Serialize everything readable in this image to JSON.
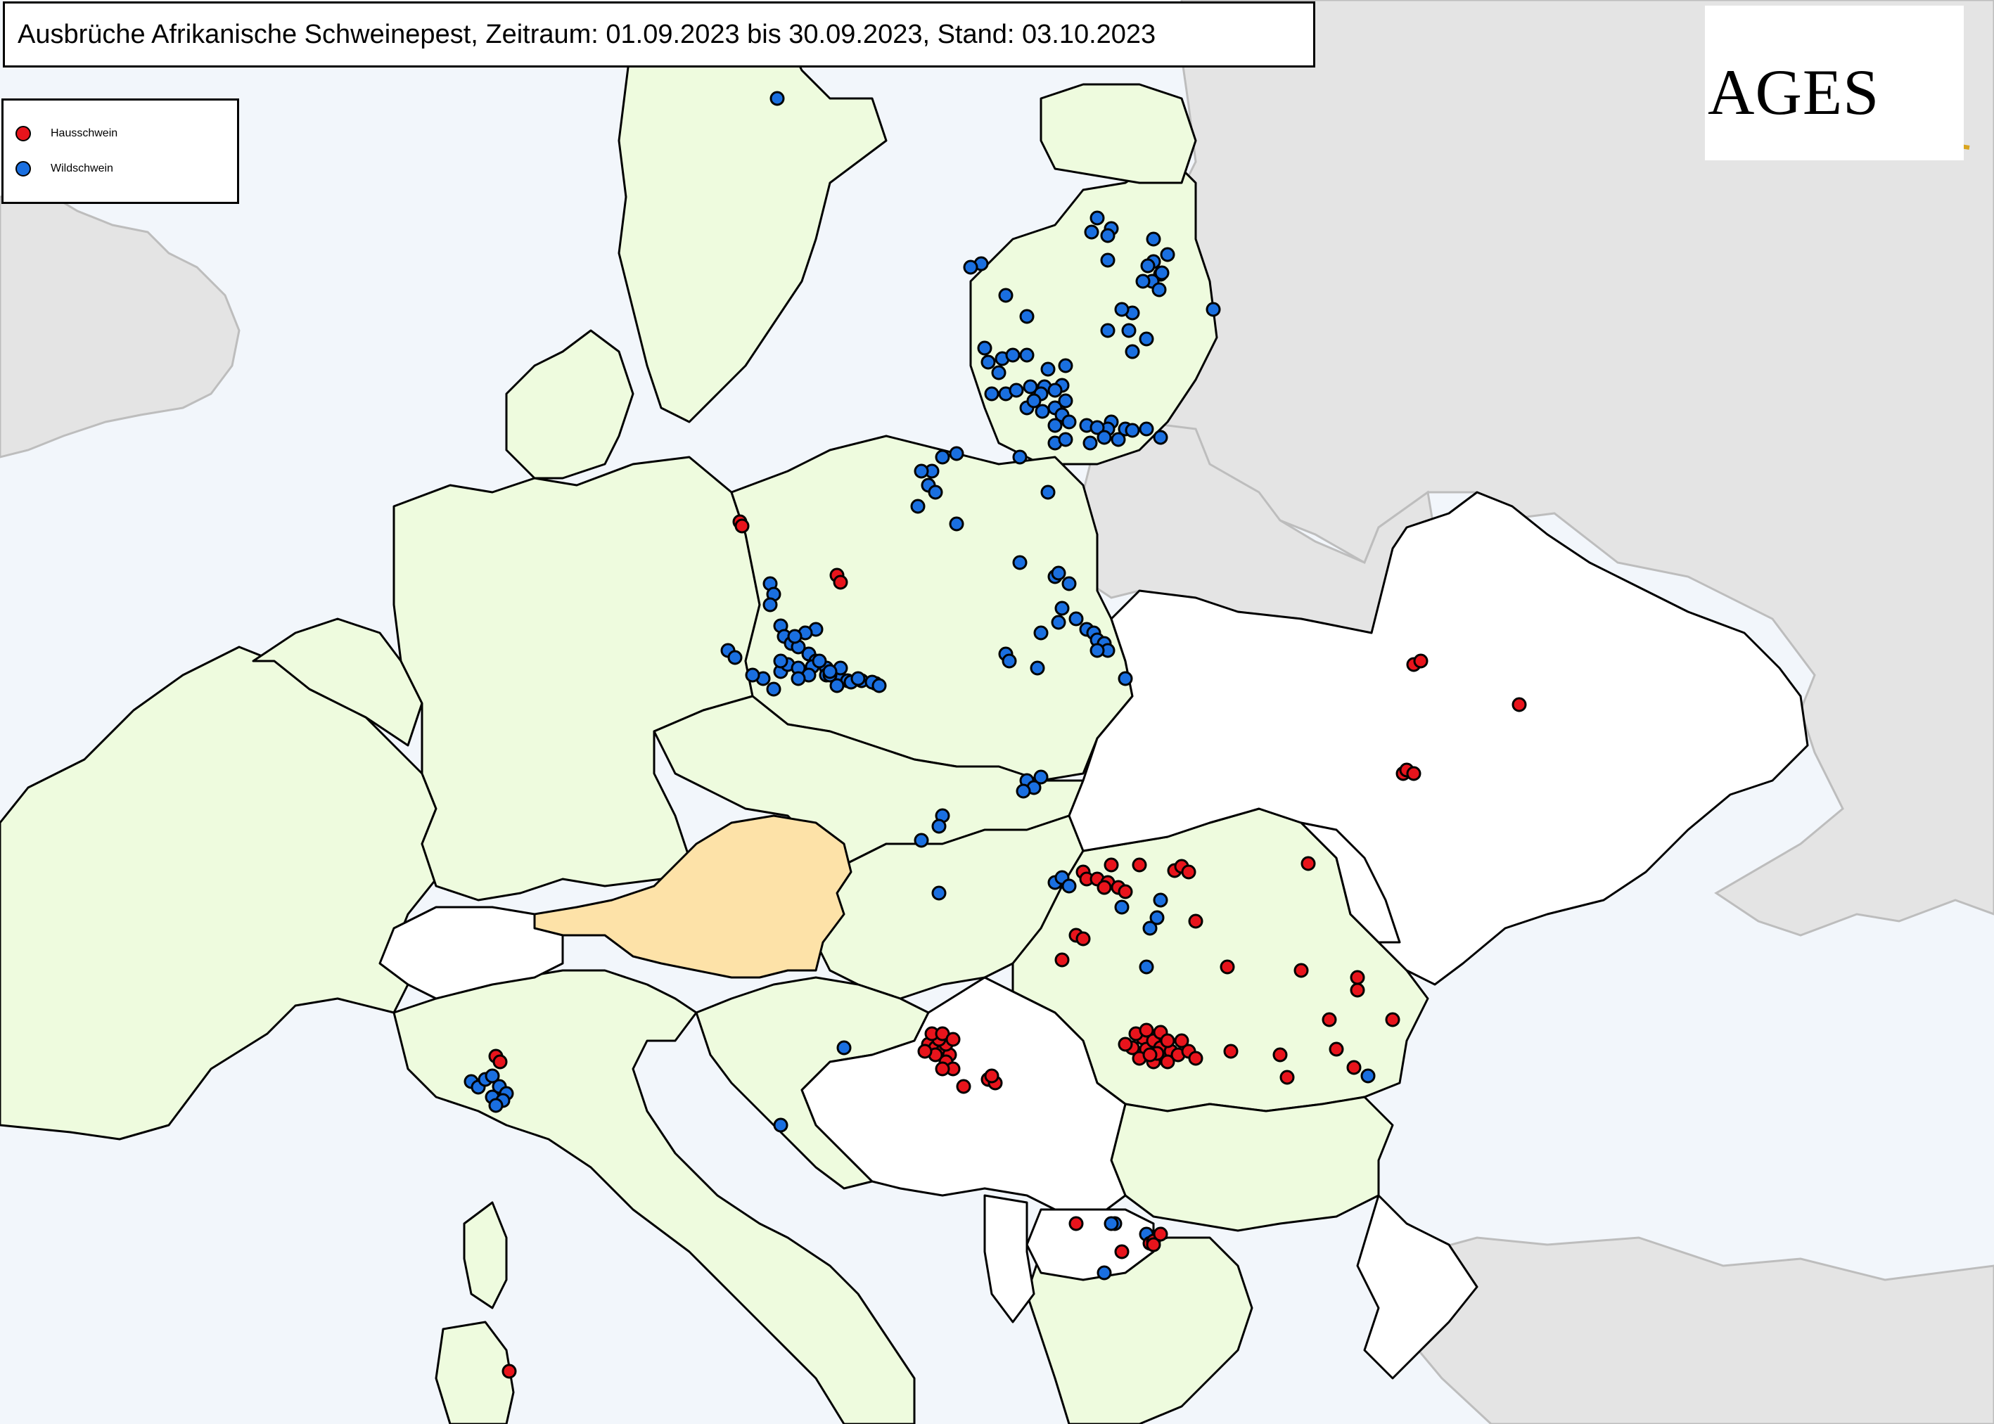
{
  "title": "Ausbrüche Afrikanische Schweinepest, Zeitraum: 01.09.2023 bis 30.09.2023, Stand: 03.10.2023",
  "legend": {
    "domestic": {
      "label": "Hausschwein",
      "color": "#e8141c"
    },
    "wild": {
      "label": "Wildschwein",
      "color": "#1a6fe0"
    }
  },
  "logo": {
    "text": "AGES"
  },
  "colors": {
    "sea": "#f2f6fb",
    "non_eu_land": "#e4e4e4",
    "eu_land": "#eefbde",
    "austria": "#fde2a8",
    "affected_non_eu": "#ffffff",
    "border": "#000000",
    "logo_gold": "#d9a520"
  }
}
